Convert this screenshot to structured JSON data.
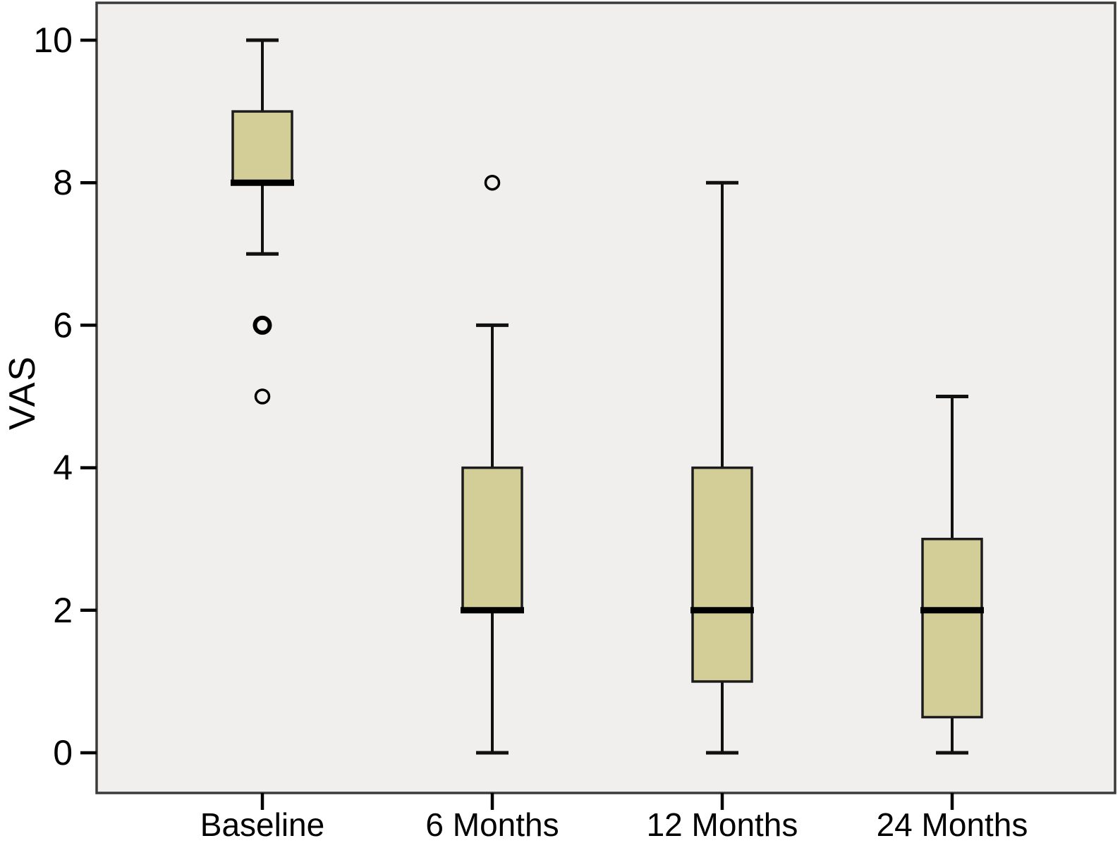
{
  "chart_data": {
    "type": "box",
    "title": "",
    "xlabel": "",
    "ylabel": "VAS",
    "ylim": [
      0,
      10
    ],
    "yticks": [
      0,
      2,
      4,
      6,
      8,
      10
    ],
    "categories": [
      "Baseline",
      "6 Months",
      "12 Months",
      "24 Months"
    ],
    "series": [
      {
        "category": "Baseline",
        "whisker_low": 7,
        "q1": 8,
        "median": 8,
        "q3": 9,
        "whisker_high": 10,
        "outliers": [
          {
            "value": 6,
            "bold": true
          },
          {
            "value": 5,
            "bold": false
          }
        ]
      },
      {
        "category": "6 Months",
        "whisker_low": 0,
        "q1": 2,
        "median": 2,
        "q3": 4,
        "whisker_high": 6,
        "outliers": [
          {
            "value": 8,
            "bold": false
          }
        ]
      },
      {
        "category": "12 Months",
        "whisker_low": 0,
        "q1": 1,
        "median": 2,
        "q3": 4,
        "whisker_high": 8,
        "outliers": []
      },
      {
        "category": "24 Months",
        "whisker_low": 0,
        "q1": 0.5,
        "median": 2,
        "q3": 3,
        "whisker_high": 5,
        "outliers": []
      }
    ],
    "grid": false,
    "legend": false,
    "colors": {
      "box_fill": "#d3cd98",
      "box_border": "#1c1c1c",
      "median": "#000000",
      "line": "#111111",
      "plot_bg": "#f0efed",
      "frame_border": "#3a3a3a",
      "text": "#000000",
      "page_bg": "#ffffff"
    }
  }
}
